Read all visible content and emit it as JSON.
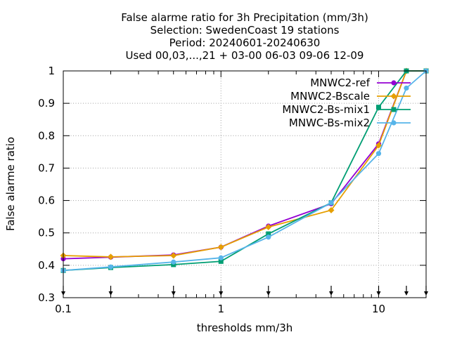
{
  "chart_data": {
    "type": "line",
    "title_lines": [
      "False alarme ratio  for 3h Precipitation (mm/3h)",
      "Selection: SwedenCoast      19 stations",
      "Period: 20240601-20240630",
      "Used 00,03,...,21 + 03-00 06-03 09-06 12-09"
    ],
    "xlabel": "thresholds mm/3h",
    "ylabel": "False alarme ratio",
    "xscale": "log",
    "xlim": [
      0.1,
      20
    ],
    "ylim": [
      0.3,
      1
    ],
    "x_ticks": [
      0.1,
      1,
      10
    ],
    "x_tick_labels": [
      "0.1",
      "1",
      "10"
    ],
    "y_ticks": [
      0.3,
      0.4,
      0.5,
      0.6,
      0.7,
      0.8,
      0.9,
      1
    ],
    "y_tick_labels": [
      "0.3",
      "0.4",
      "0.5",
      "0.6",
      "0.7",
      "0.8",
      "0.9",
      "1"
    ],
    "grid": true,
    "legend_position": "top-right",
    "threshold_markers": [
      0.1,
      0.2,
      0.5,
      1,
      2,
      5,
      10,
      15,
      20
    ],
    "x": [
      0.1,
      0.2,
      0.5,
      1,
      2,
      5,
      10,
      15,
      20
    ],
    "series": [
      {
        "name": "MNWC2-ref",
        "color": "#9400d3",
        "marker": "circle",
        "values": [
          0.42,
          0.425,
          0.432,
          0.456,
          0.521,
          0.59,
          0.775,
          1.0,
          1.0
        ]
      },
      {
        "name": "MNWC2-Bscale",
        "color": "#e69f00",
        "marker": "diamond",
        "values": [
          0.43,
          0.426,
          0.43,
          0.456,
          0.518,
          0.57,
          0.77,
          1.0,
          1.0
        ]
      },
      {
        "name": "MNWC2-Bs-mix1",
        "color": "#009e73",
        "marker": "square",
        "values": [
          0.384,
          0.393,
          0.402,
          0.412,
          0.497,
          0.593,
          0.888,
          1.0,
          1.0
        ]
      },
      {
        "name": "MNWC-Bs-mix2",
        "color": "#56b4e9",
        "marker": "circle",
        "values": [
          0.384,
          0.395,
          0.41,
          0.423,
          0.487,
          0.593,
          0.745,
          0.947,
          1.0
        ]
      }
    ]
  }
}
